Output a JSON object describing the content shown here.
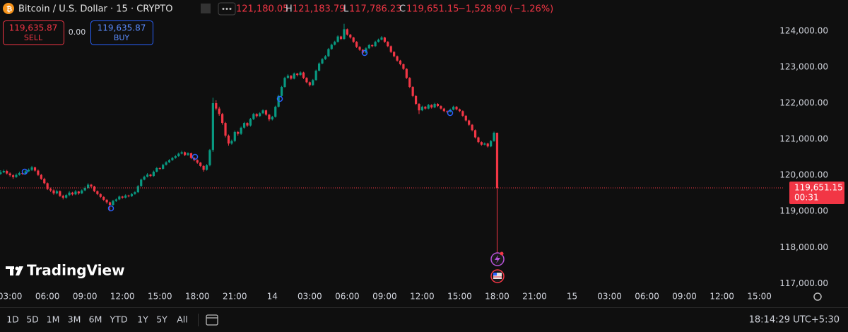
{
  "header": {
    "symbol": "Bitcoin / U.S. Dollar · 15 · CRYPTO",
    "open": "121,180.05",
    "high_label": "H",
    "high": "121,183.79",
    "low_label": "L",
    "low": "117,786.23",
    "close_label": "C",
    "close": "119,651.15",
    "change": "−1,528.90 (−1.26%)"
  },
  "trade": {
    "sell_price": "119,635.87",
    "sell": "SELL",
    "spread": "0.00",
    "buy_price": "119,635.87",
    "buy": "BUY"
  },
  "brand": "TradingView",
  "toolbar": {
    "ranges": [
      "1D",
      "5D",
      "1M",
      "3M",
      "6M",
      "YTD",
      "1Y",
      "5Y",
      "All"
    ],
    "clock": "18:14:29 UTC+5:30"
  },
  "price_tag": {
    "price": "119,651.15",
    "countdown": "00:31"
  },
  "chart_data": {
    "type": "candlestick",
    "up_color": "#089981",
    "down_color": "#f23645",
    "grid": false,
    "ylim": [
      116830,
      124860
    ],
    "xlim": [
      -0.2,
      251
    ],
    "yticks": [
      {
        "value": 117000,
        "label": "117,000.00"
      },
      {
        "value": 118000,
        "label": "118,000.00"
      },
      {
        "value": 119000,
        "label": "119,000.00"
      },
      {
        "value": 120000,
        "label": "120,000.00"
      },
      {
        "value": 121000,
        "label": "121,000.00"
      },
      {
        "value": 122000,
        "label": "122,000.00"
      },
      {
        "value": 123000,
        "label": "123,000.00"
      },
      {
        "value": 124000,
        "label": "124,000.00"
      }
    ],
    "xticks": [
      {
        "value": 3,
        "label": "03:00"
      },
      {
        "value": 15,
        "label": "06:00"
      },
      {
        "value": 27,
        "label": "09:00"
      },
      {
        "value": 39,
        "label": "12:00"
      },
      {
        "value": 51,
        "label": "15:00"
      },
      {
        "value": 63,
        "label": "18:00"
      },
      {
        "value": 75,
        "label": "21:00"
      },
      {
        "value": 87,
        "label": "14"
      },
      {
        "value": 99,
        "label": "03:00"
      },
      {
        "value": 111,
        "label": "06:00"
      },
      {
        "value": 123,
        "label": "09:00"
      },
      {
        "value": 135,
        "label": "12:00"
      },
      {
        "value": 147,
        "label": "15:00"
      },
      {
        "value": 159,
        "label": "18:00"
      },
      {
        "value": 171,
        "label": "21:00"
      },
      {
        "value": 183,
        "label": "15"
      },
      {
        "value": 195,
        "label": "03:00"
      },
      {
        "value": 207,
        "label": "06:00"
      },
      {
        "value": 219,
        "label": "09:00"
      },
      {
        "value": 231,
        "label": "12:00"
      },
      {
        "value": 243,
        "label": "15:00"
      }
    ],
    "ohlc": [
      [
        120040,
        120140,
        120010,
        120080
      ],
      [
        120080,
        120160,
        120060,
        120120
      ],
      [
        120120,
        120150,
        120020,
        120050
      ],
      [
        120050,
        120080,
        119960,
        120000
      ],
      [
        120000,
        120030,
        119900,
        119950
      ],
      [
        119950,
        120050,
        119930,
        120010
      ],
      [
        120010,
        120100,
        119990,
        120060
      ],
      [
        120060,
        120090,
        120010,
        120040
      ],
      [
        120040,
        120140,
        120020,
        120110
      ],
      [
        120110,
        120190,
        120090,
        120150
      ],
      [
        120150,
        120260,
        120120,
        120220
      ],
      [
        120220,
        120240,
        120100,
        120130
      ],
      [
        120130,
        120160,
        119980,
        120010
      ],
      [
        120010,
        120040,
        119870,
        119900
      ],
      [
        119900,
        119930,
        119750,
        119780
      ],
      [
        119780,
        119800,
        119590,
        119620
      ],
      [
        119620,
        119660,
        119540,
        119580
      ],
      [
        119580,
        119610,
        119460,
        119500
      ],
      [
        119500,
        119600,
        119470,
        119560
      ],
      [
        119560,
        119580,
        119400,
        119430
      ],
      [
        119430,
        119460,
        119330,
        119380
      ],
      [
        119380,
        119480,
        119350,
        119450
      ],
      [
        119450,
        119560,
        119420,
        119520
      ],
      [
        119520,
        119540,
        119440,
        119470
      ],
      [
        119470,
        119590,
        119450,
        119550
      ],
      [
        119550,
        119570,
        119460,
        119500
      ],
      [
        119500,
        119610,
        119480,
        119580
      ],
      [
        119580,
        119690,
        119560,
        119650
      ],
      [
        119650,
        119780,
        119620,
        119740
      ],
      [
        119740,
        119760,
        119660,
        119690
      ],
      [
        119690,
        119710,
        119530,
        119560
      ],
      [
        119560,
        119580,
        119450,
        119480
      ],
      [
        119480,
        119500,
        119370,
        119400
      ],
      [
        119400,
        119420,
        119290,
        119320
      ],
      [
        119320,
        119340,
        119210,
        119250
      ],
      [
        119250,
        119270,
        119000,
        119180
      ],
      [
        119180,
        119320,
        119150,
        119290
      ],
      [
        119290,
        119360,
        119260,
        119330
      ],
      [
        119330,
        119440,
        119310,
        119410
      ],
      [
        119410,
        119430,
        119350,
        119380
      ],
      [
        119380,
        119470,
        119360,
        119440
      ],
      [
        119440,
        119460,
        119390,
        119420
      ],
      [
        119420,
        119510,
        119400,
        119480
      ],
      [
        119480,
        119560,
        119460,
        119530
      ],
      [
        119530,
        119730,
        119510,
        119700
      ],
      [
        119700,
        119910,
        119680,
        119880
      ],
      [
        119880,
        119990,
        119860,
        119960
      ],
      [
        119960,
        120060,
        119940,
        120020
      ],
      [
        120020,
        120040,
        119950,
        119980
      ],
      [
        119980,
        120130,
        119960,
        120100
      ],
      [
        120100,
        120230,
        120080,
        120200
      ],
      [
        120200,
        120220,
        120150,
        120180
      ],
      [
        120180,
        120320,
        120160,
        120290
      ],
      [
        120290,
        120390,
        120270,
        120360
      ],
      [
        120360,
        120450,
        120340,
        120420
      ],
      [
        120420,
        120510,
        120400,
        120480
      ],
      [
        120480,
        120560,
        120460,
        120530
      ],
      [
        120530,
        120630,
        120510,
        120600
      ],
      [
        120600,
        120680,
        120580,
        120640
      ],
      [
        120640,
        120660,
        120530,
        120560
      ],
      [
        120560,
        120640,
        120540,
        120610
      ],
      [
        120610,
        120630,
        120450,
        120480
      ],
      [
        120480,
        120500,
        120390,
        120420
      ],
      [
        120420,
        120440,
        120320,
        120350
      ],
      [
        120350,
        120370,
        120230,
        120260
      ],
      [
        120260,
        120280,
        120100,
        120150
      ],
      [
        120150,
        120310,
        120130,
        120280
      ],
      [
        120280,
        120730,
        120250,
        120700
      ],
      [
        120700,
        122150,
        120650,
        122000
      ],
      [
        122000,
        122080,
        121800,
        121850
      ],
      [
        121850,
        121900,
        121650,
        121700
      ],
      [
        121700,
        121730,
        121400,
        121450
      ],
      [
        121450,
        121480,
        121050,
        121100
      ],
      [
        121100,
        121130,
        120820,
        120880
      ],
      [
        120880,
        120990,
        120850,
        120950
      ],
      [
        120950,
        121240,
        120920,
        121200
      ],
      [
        121200,
        121230,
        121100,
        121150
      ],
      [
        121150,
        121350,
        121120,
        121320
      ],
      [
        121320,
        121480,
        121290,
        121450
      ],
      [
        121450,
        121470,
        121340,
        121380
      ],
      [
        121380,
        121590,
        121350,
        121560
      ],
      [
        121560,
        121730,
        121530,
        121700
      ],
      [
        121700,
        121720,
        121600,
        121640
      ],
      [
        121640,
        121750,
        121620,
        121720
      ],
      [
        121720,
        121830,
        121700,
        121800
      ],
      [
        121800,
        121820,
        121650,
        121680
      ],
      [
        121680,
        121700,
        121500,
        121550
      ],
      [
        121550,
        121650,
        121520,
        121620
      ],
      [
        121620,
        121930,
        121600,
        121900
      ],
      [
        121900,
        122230,
        121880,
        122200
      ],
      [
        122200,
        122480,
        122180,
        122450
      ],
      [
        122450,
        122730,
        122430,
        122700
      ],
      [
        122700,
        122800,
        122680,
        122760
      ],
      [
        122760,
        122780,
        122650,
        122680
      ],
      [
        122680,
        122850,
        122660,
        122820
      ],
      [
        122820,
        122840,
        122740,
        122780
      ],
      [
        122780,
        122880,
        122760,
        122850
      ],
      [
        122850,
        122870,
        122670,
        122700
      ],
      [
        122700,
        122720,
        122550,
        122580
      ],
      [
        122580,
        122600,
        122460,
        122500
      ],
      [
        122500,
        122670,
        122480,
        122640
      ],
      [
        122640,
        122930,
        122620,
        122900
      ],
      [
        122900,
        123130,
        122880,
        123100
      ],
      [
        123100,
        123250,
        123080,
        123220
      ],
      [
        123220,
        123330,
        123200,
        123300
      ],
      [
        123300,
        123530,
        123280,
        123500
      ],
      [
        123500,
        123650,
        123480,
        123620
      ],
      [
        123620,
        123730,
        123600,
        123700
      ],
      [
        123700,
        123880,
        123680,
        123850
      ],
      [
        123850,
        123870,
        123750,
        123780
      ],
      [
        123780,
        124200,
        123760,
        124050
      ],
      [
        124050,
        124070,
        123870,
        123900
      ],
      [
        123900,
        123920,
        123790,
        123820
      ],
      [
        123820,
        123840,
        123670,
        123700
      ],
      [
        123700,
        123720,
        123530,
        123560
      ],
      [
        123560,
        123580,
        123450,
        123480
      ],
      [
        123480,
        123500,
        123370,
        123400
      ],
      [
        123400,
        123550,
        123380,
        123520
      ],
      [
        123520,
        123640,
        123500,
        123610
      ],
      [
        123610,
        123630,
        123550,
        123580
      ],
      [
        123580,
        123730,
        123560,
        123700
      ],
      [
        123700,
        123790,
        123680,
        123760
      ],
      [
        123760,
        123860,
        123740,
        123820
      ],
      [
        123820,
        123840,
        123670,
        123700
      ],
      [
        123700,
        123720,
        123550,
        123580
      ],
      [
        123580,
        123600,
        123390,
        123420
      ],
      [
        123420,
        123440,
        123270,
        123300
      ],
      [
        123300,
        123320,
        123150,
        123180
      ],
      [
        123180,
        123200,
        123050,
        123080
      ],
      [
        123080,
        123100,
        122920,
        122950
      ],
      [
        122950,
        122970,
        122670,
        122700
      ],
      [
        122700,
        122720,
        122420,
        122450
      ],
      [
        122450,
        122470,
        122170,
        122200
      ],
      [
        122200,
        122220,
        121950,
        121980
      ],
      [
        121980,
        122000,
        121700,
        121800
      ],
      [
        121800,
        121930,
        121780,
        121900
      ],
      [
        121900,
        121920,
        121820,
        121850
      ],
      [
        121850,
        121980,
        121830,
        121950
      ],
      [
        121950,
        121970,
        121850,
        121880
      ],
      [
        121880,
        122010,
        121860,
        121980
      ],
      [
        121980,
        122000,
        121890,
        121920
      ],
      [
        121920,
        121940,
        121820,
        121850
      ],
      [
        121850,
        121870,
        121750,
        121780
      ],
      [
        121780,
        121800,
        121730,
        121760
      ],
      [
        121760,
        121850,
        121740,
        121820
      ],
      [
        121820,
        121930,
        121800,
        121900
      ],
      [
        121900,
        121920,
        121800,
        121830
      ],
      [
        121830,
        121850,
        121750,
        121780
      ],
      [
        121780,
        121800,
        121620,
        121650
      ],
      [
        121650,
        121670,
        121490,
        121520
      ],
      [
        121520,
        121540,
        121370,
        121400
      ],
      [
        121400,
        121420,
        121220,
        121250
      ],
      [
        121250,
        121270,
        121020,
        121050
      ],
      [
        121050,
        121070,
        120890,
        120920
      ],
      [
        120920,
        120940,
        120820,
        120850
      ],
      [
        120850,
        120910,
        120830,
        120880
      ],
      [
        120880,
        120900,
        120770,
        120800
      ],
      [
        120800,
        120980,
        120780,
        120950
      ],
      [
        120950,
        121210,
        120930,
        121180
      ],
      [
        121180.05,
        121183.79,
        117786.23,
        119651.15
      ]
    ]
  }
}
